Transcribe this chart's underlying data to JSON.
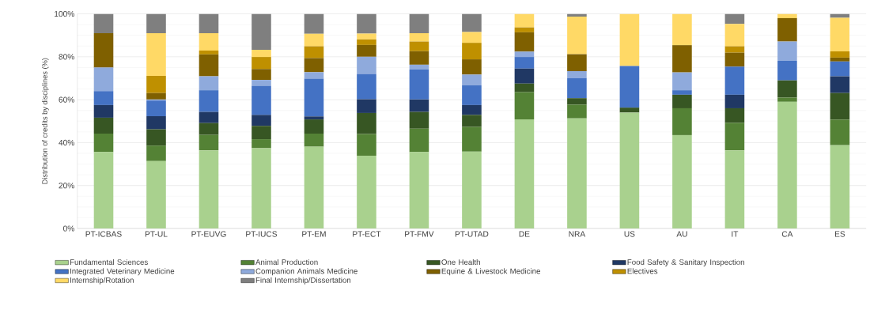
{
  "chart_data": {
    "type": "bar",
    "stacked": true,
    "ylabel": "Distribution of credits by disciplines (%)",
    "categories": [
      "PT-ICBAS",
      "PT-UL",
      "PT-EUVG",
      "PT-IUCS",
      "PT-EM",
      "PT-ECT",
      "PT-FMV",
      "PT-UTAD",
      "DE",
      "NRA",
      "US",
      "AU",
      "IT",
      "CA",
      "ES"
    ],
    "series": [
      {
        "name": "Fundamental Sciences",
        "color": "#a9d18e",
        "values": [
          35.6,
          31.4,
          36.4,
          37.4,
          38.1,
          33.9,
          35.6,
          35.8,
          50.8,
          51.3,
          54.0,
          43.5,
          36.4,
          59.0,
          38.8
        ]
      },
      {
        "name": "Animal Production",
        "color": "#548235",
        "values": [
          8.6,
          7.2,
          7.2,
          4.2,
          6.1,
          10.1,
          10.9,
          11.5,
          12.7,
          6.4,
          0,
          12.5,
          12.8,
          2.0,
          11.9
        ]
      },
      {
        "name": "One Health",
        "color": "#375623",
        "values": [
          7.4,
          7.6,
          5.5,
          6.2,
          6.6,
          9.8,
          7.8,
          5.6,
          4.0,
          3.0,
          2.3,
          6.3,
          6.8,
          8.0,
          12.4
        ]
      },
      {
        "name": "Food Safety & Sanitary Inspection",
        "color": "#203864",
        "values": [
          5.9,
          6.1,
          5.2,
          5.1,
          1.4,
          6.4,
          5.8,
          4.6,
          7.0,
          0,
          0,
          0,
          6.3,
          0,
          7.8
        ]
      },
      {
        "name": "Integrated Veterinary Medicine",
        "color": "#4472c4",
        "values": [
          6.5,
          7.3,
          10.1,
          13.6,
          17.6,
          11.8,
          13.9,
          9.2,
          5.4,
          9.4,
          19.4,
          2.1,
          13.1,
          9.1,
          6.9
        ]
      },
      {
        "name": "Companion Animals Medicine",
        "color": "#8faadc",
        "values": [
          11.0,
          0.5,
          6.5,
          2.7,
          3.0,
          8.0,
          2.3,
          5.0,
          2.5,
          3.2,
          0,
          8.3,
          0,
          9.0,
          0
        ]
      },
      {
        "name": "Equine & Livestock Medicine",
        "color": "#7f6000",
        "values": [
          16.0,
          3.0,
          10.2,
          5.1,
          6.6,
          5.5,
          6.3,
          7.1,
          9.0,
          7.9,
          0,
          12.7,
          6.5,
          10.9,
          1.8
        ]
      },
      {
        "name": "Electives",
        "color": "#bf9000",
        "values": [
          0,
          8.0,
          1.8,
          5.6,
          5.5,
          2.6,
          4.5,
          7.7,
          2.3,
          0,
          0,
          0,
          3.0,
          0,
          2.9
        ]
      },
      {
        "name": "Internship/Rotation",
        "color": "#ffd966",
        "values": [
          0,
          19.9,
          8.1,
          3.3,
          5.8,
          2.7,
          3.9,
          5.0,
          6.3,
          17.5,
          24.3,
          14.6,
          10.4,
          2.0,
          15.7
        ]
      },
      {
        "name": "Final Internship/Dissertation",
        "color": "#7f7f7f",
        "values": [
          9.0,
          9.0,
          9.0,
          16.8,
          9.3,
          9.2,
          9.0,
          8.5,
          0,
          1.3,
          0,
          0,
          4.7,
          0,
          1.8
        ]
      }
    ],
    "ylim": [
      0,
      100
    ],
    "yticks": [
      {
        "value": 0,
        "label": "0%"
      },
      {
        "value": 20,
        "label": "20%"
      },
      {
        "value": 40,
        "label": "40%"
      },
      {
        "value": 60,
        "label": "60%"
      },
      {
        "value": 80,
        "label": "80%"
      },
      {
        "value": 100,
        "label": "100%"
      }
    ],
    "grid": "y",
    "legend": "bottom"
  }
}
